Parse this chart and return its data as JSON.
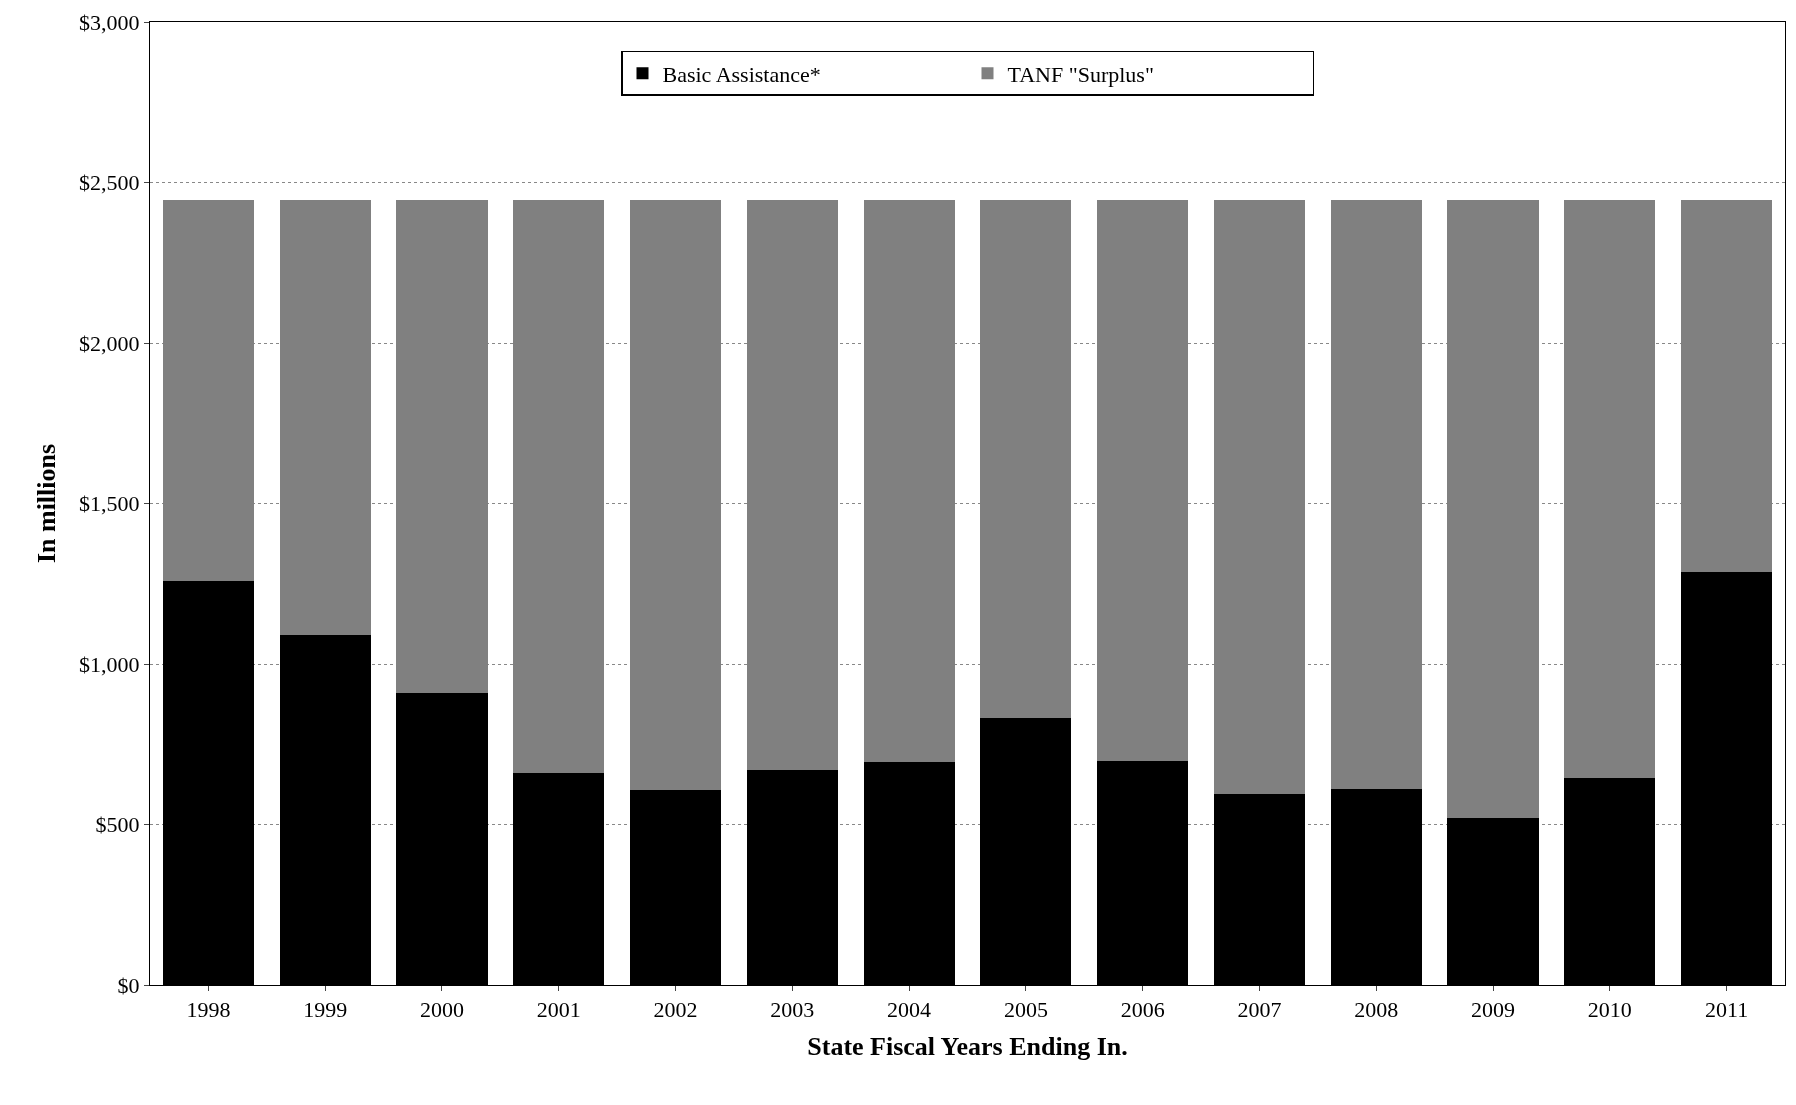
{
  "chart_data": {
    "type": "bar",
    "stacked": true,
    "xlabel": "State Fiscal Years Ending In.",
    "ylabel": "In millions",
    "categories": [
      "1998",
      "1999",
      "2000",
      "2001",
      "2002",
      "2003",
      "2004",
      "2005",
      "2006",
      "2007",
      "2008",
      "2009",
      "2010",
      "2011"
    ],
    "series": [
      {
        "name": "Basic Assistance*",
        "color": "#000000",
        "values": [
          1258,
          1090,
          911,
          659,
          606,
          669,
          694,
          831,
          697,
          596,
          610,
          519,
          645,
          1286
        ]
      },
      {
        "name": "TANF \"Surplus\"",
        "color": "#808080",
        "values": [
          1187,
          1355,
          1534,
          1786,
          1839,
          1776,
          1751,
          1614,
          1748,
          1849,
          1835,
          1926,
          1800,
          1159
        ]
      }
    ],
    "ylim": [
      0,
      3000
    ],
    "yticks": [
      {
        "value": 0,
        "label": "$0"
      },
      {
        "value": 500,
        "label": "$500"
      },
      {
        "value": 1000,
        "label": "$1,000"
      },
      {
        "value": 1500,
        "label": "$1,500"
      },
      {
        "value": 2000,
        "label": "$2,000"
      },
      {
        "value": 2500,
        "label": "$2,500"
      },
      {
        "value": 3000,
        "label": "$3,000"
      }
    ],
    "grid": "y",
    "legend": "top"
  }
}
